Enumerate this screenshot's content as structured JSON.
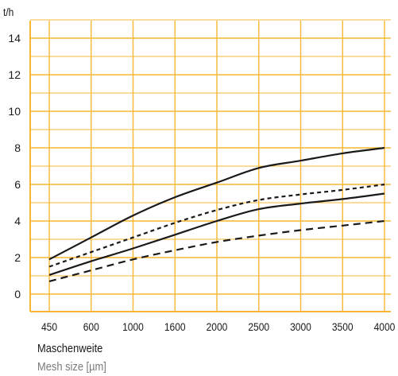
{
  "chart_data": {
    "type": "line",
    "ylabel_unit": "t/h",
    "xlabel": "Maschenweite",
    "xlabel_secondary": "Mesh size [µm]",
    "categories": [
      "450",
      "600",
      "1000",
      "1600",
      "2000",
      "2500",
      "3000",
      "3500",
      "4000"
    ],
    "ylim": [
      0,
      15
    ],
    "yticks": [
      0,
      2,
      4,
      6,
      8,
      10,
      12,
      14
    ],
    "grid": true,
    "grid_color": "#f7b733",
    "axis_color": "#f7b733",
    "line_color": "#1a1a1a",
    "series": [
      {
        "style": "solid",
        "values": [
          1.9,
          3.1,
          4.3,
          5.3,
          6.1,
          6.9,
          7.3,
          7.7,
          8.0
        ]
      },
      {
        "style": "dotted",
        "values": [
          1.5,
          2.3,
          3.1,
          3.9,
          4.6,
          5.15,
          5.45,
          5.7,
          6.0
        ]
      },
      {
        "style": "solid",
        "values": [
          1.05,
          1.8,
          2.5,
          3.25,
          4.0,
          4.65,
          4.95,
          5.2,
          5.5
        ]
      },
      {
        "style": "dashed",
        "values": [
          0.7,
          1.3,
          1.9,
          2.4,
          2.85,
          3.2,
          3.5,
          3.75,
          4.0
        ]
      }
    ]
  }
}
